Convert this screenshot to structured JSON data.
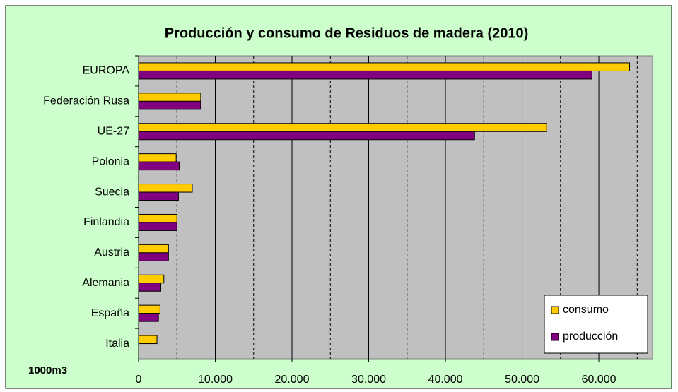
{
  "chart_data": {
    "type": "bar",
    "orientation": "horizontal",
    "title": "Producción y consumo de Residuos de madera (2010)",
    "unit_label": "1000m3",
    "categories": [
      "EUROPA",
      "Federación Rusa",
      "UE-27",
      "Polonia",
      "Suecia",
      "Finlandia",
      "Austria",
      "Alemania",
      "España",
      "Italia"
    ],
    "series": [
      {
        "name": "consumo",
        "color": "#ffcc00",
        "values": [
          64000,
          8100,
          53200,
          4900,
          7000,
          5000,
          3900,
          3300,
          2800,
          2400
        ]
      },
      {
        "name": "producción",
        "color": "#800080",
        "values": [
          59100,
          8100,
          43800,
          5300,
          5200,
          5000,
          3900,
          2900,
          2600,
          0
        ]
      }
    ],
    "xlim": [
      0,
      67000
    ],
    "xticks": [
      0,
      {
        "value": 10000,
        "label": "10.000"
      },
      {
        "value": 20000,
        "label": "20.000"
      },
      {
        "value": 30000,
        "label": "30.000"
      },
      {
        "value": 40000,
        "label": "40.000"
      },
      {
        "value": 50000,
        "label": "50.000"
      },
      {
        "value": 60000,
        "label": "60.000"
      }
    ],
    "grid": true,
    "legend": "bottom-right"
  }
}
